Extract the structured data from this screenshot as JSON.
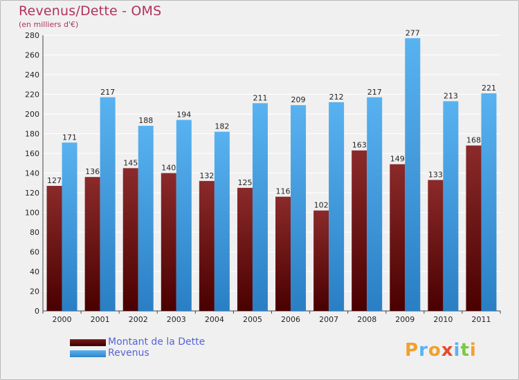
{
  "title": "Revenus/Dette - OMS",
  "subtitle": "(en milliers d'€)",
  "logo_text": "Proxiti",
  "colors": {
    "dette": "#7a1a1a",
    "revenus": "#4aa3e6",
    "title": "#b0325a",
    "legend_text": "#5563d8"
  },
  "chart_data": {
    "type": "bar",
    "title": "Revenus/Dette - OMS",
    "ylabel": "(en milliers d'€)",
    "xlabel": "",
    "ylim": [
      0,
      280
    ],
    "yticks": [
      0,
      20,
      40,
      60,
      80,
      100,
      120,
      140,
      160,
      180,
      200,
      220,
      240,
      260,
      280
    ],
    "grid": true,
    "legend_position": "bottom-left",
    "categories": [
      "2000",
      "2001",
      "2002",
      "2003",
      "2004",
      "2005",
      "2006",
      "2007",
      "2008",
      "2009",
      "2010",
      "2011"
    ],
    "series": [
      {
        "name": "Montant de la Dette",
        "values": [
          127,
          136,
          145,
          140,
          132,
          125,
          116,
          102,
          163,
          149,
          133,
          168
        ]
      },
      {
        "name": "Revenus",
        "values": [
          171,
          217,
          188,
          194,
          182,
          211,
          209,
          212,
          217,
          277,
          213,
          221
        ]
      }
    ]
  }
}
